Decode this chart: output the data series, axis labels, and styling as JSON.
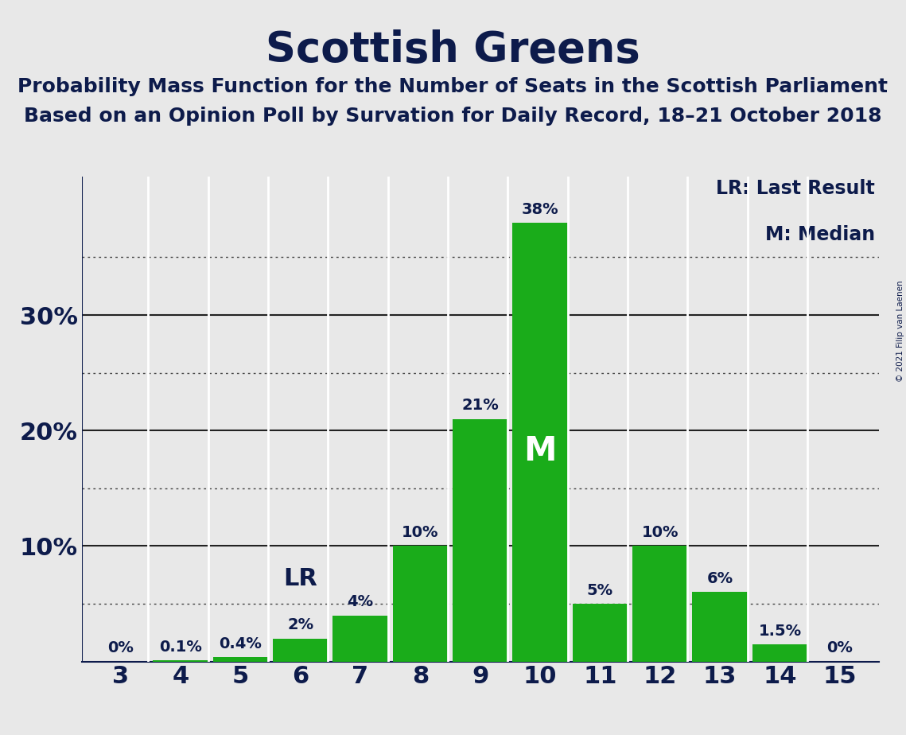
{
  "title": "Scottish Greens",
  "subtitle1": "Probability Mass Function for the Number of Seats in the Scottish Parliament",
  "subtitle2": "Based on an Opinion Poll by Survation for Daily Record, 18–21 October 2018",
  "copyright": "© 2021 Filip van Laenen",
  "seats": [
    3,
    4,
    5,
    6,
    7,
    8,
    9,
    10,
    11,
    12,
    13,
    14,
    15
  ],
  "probabilities": [
    0.0,
    0.1,
    0.4,
    2.0,
    4.0,
    10.0,
    21.0,
    38.0,
    5.0,
    10.0,
    6.0,
    1.5,
    0.0
  ],
  "bar_color": "#1aac1a",
  "background_color": "#e8e8e8",
  "text_color": "#0d1b4b",
  "solid_yticks": [
    10,
    20,
    30
  ],
  "dotted_yticks": [
    5,
    15,
    25,
    35
  ],
  "lr_seat": 6,
  "median_seat": 10,
  "legend_lr": "LR: Last Result",
  "legend_m": "M: Median",
  "bar_labels": [
    "0%",
    "0.1%",
    "0.4%",
    "2%",
    "4%",
    "10%",
    "21%",
    "38%",
    "5%",
    "10%",
    "6%",
    "1.5%",
    "0%"
  ],
  "ymax": 42,
  "bar_label_fontsize": 14,
  "ytick_fontsize": 22,
  "xtick_fontsize": 22,
  "title_fontsize": 38,
  "subtitle_fontsize": 18,
  "legend_fontsize": 17,
  "lr_fontsize": 22,
  "m_fontsize": 30
}
